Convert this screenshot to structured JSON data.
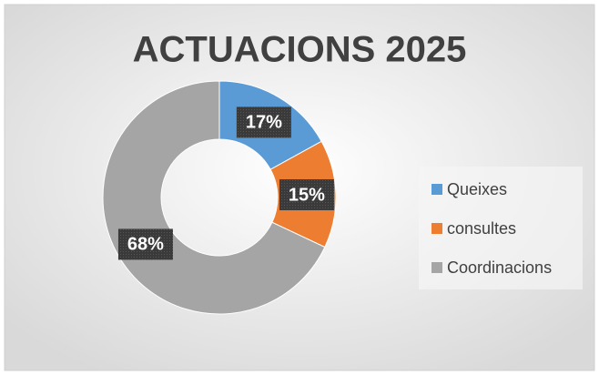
{
  "chart_data": {
    "type": "donut",
    "title": "ACTUACIONS 2025",
    "categories": [
      "Queixes",
      "consultes",
      "Coordinacions"
    ],
    "values": [
      17,
      15,
      68
    ],
    "value_labels": [
      "17%",
      "15%",
      "68%"
    ],
    "colors": [
      "#5b9bd5",
      "#ed7d31",
      "#a5a5a5"
    ],
    "legend": "right"
  }
}
